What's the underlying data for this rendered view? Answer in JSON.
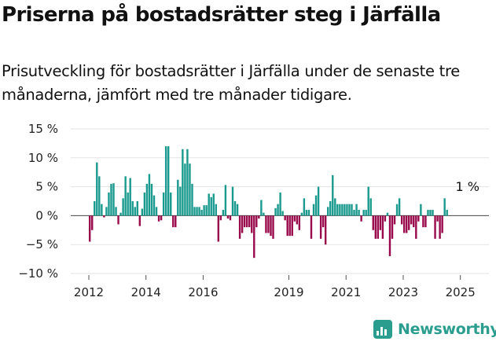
{
  "header": {
    "title": "Priserna på bostadsrätter steg i Järfälla",
    "subtitle": "Prisutveckling för bostadsrätter i Järfälla under de senaste tre månaderna, jämfört med tre månader tidigare."
  },
  "brand": {
    "name": "Newsworthy",
    "logo_icon": "bar-chart-logo-icon",
    "color": "#2a9d8f"
  },
  "chart_data": {
    "type": "bar",
    "title": "",
    "xlabel": "",
    "ylabel": "",
    "x_start": "2012-01",
    "x_step": "1 month",
    "ylim": [
      -10,
      15
    ],
    "yticks": [
      -10,
      -5,
      0,
      5,
      10,
      15
    ],
    "ytick_labels": [
      "−10 %",
      "−5 %",
      "0 %",
      "5 %",
      "10 %",
      "15 %"
    ],
    "xticks": [
      "2012",
      "2014",
      "2016",
      "2019",
      "2021",
      "2023",
      "2025"
    ],
    "grid": "horizontal",
    "colors": {
      "positive": "#1a9a8e",
      "negative": "#990a4c"
    },
    "annotation": {
      "text": "1 %",
      "month": "2025-04",
      "value": 1
    },
    "values": [
      -4.5,
      -2.5,
      2.5,
      9.2,
      6.8,
      2.0,
      -0.3,
      1.5,
      4.0,
      5.5,
      5.6,
      1.5,
      -1.5,
      0.5,
      3.0,
      6.8,
      4.0,
      6.5,
      2.5,
      1.5,
      2.5,
      -1.8,
      1.2,
      4.0,
      5.5,
      7.2,
      5.5,
      3.5,
      1.5,
      -1.0,
      -0.8,
      4.0,
      12.0,
      12.0,
      4.0,
      -2.0,
      -2.0,
      6.2,
      5.0,
      11.5,
      9.0,
      11.5,
      9.0,
      5.5,
      1.5,
      1.5,
      1.5,
      1.0,
      1.8,
      1.8,
      3.8,
      3.2,
      3.8,
      2.0,
      -4.5,
      -0.8,
      1.0,
      5.3,
      -0.5,
      -0.8,
      5.0,
      2.5,
      2.0,
      -4.0,
      -3.0,
      -2.0,
      -2.0,
      -2.0,
      -3.0,
      -7.3,
      -2.0,
      -0.5,
      2.7,
      0.5,
      -3.0,
      -3.0,
      -3.5,
      -4.0,
      1.3,
      2.0,
      4.0,
      0.8,
      -0.8,
      -3.5,
      -3.5,
      -3.5,
      -1.0,
      -1.5,
      -2.5,
      0.5,
      3.0,
      1.0,
      1.0,
      -4.0,
      2.0,
      3.5,
      5.0,
      -4.0,
      -2.0,
      -5.0,
      1.5,
      2.5,
      7.0,
      3.0,
      2.0,
      2.0,
      2.0,
      2.0,
      2.0,
      2.0,
      2.0,
      1.0,
      2.0,
      1.0,
      -1.0,
      1.0,
      1.0,
      5.0,
      3.0,
      -2.5,
      -4.0,
      -4.0,
      -2.5,
      -4.0,
      -1.0,
      0.5,
      -7.0,
      -4.0,
      -1.5,
      2.0,
      3.0,
      -1.5,
      -3.0,
      -3.0,
      -2.5,
      -1.5,
      -2.0,
      -4.0,
      -1.0,
      2.0,
      -2.0,
      -2.0,
      1.0,
      1.0,
      1.0,
      -4.0,
      -1.0,
      -4.0,
      -3.0,
      3.0,
      1.0
    ]
  }
}
